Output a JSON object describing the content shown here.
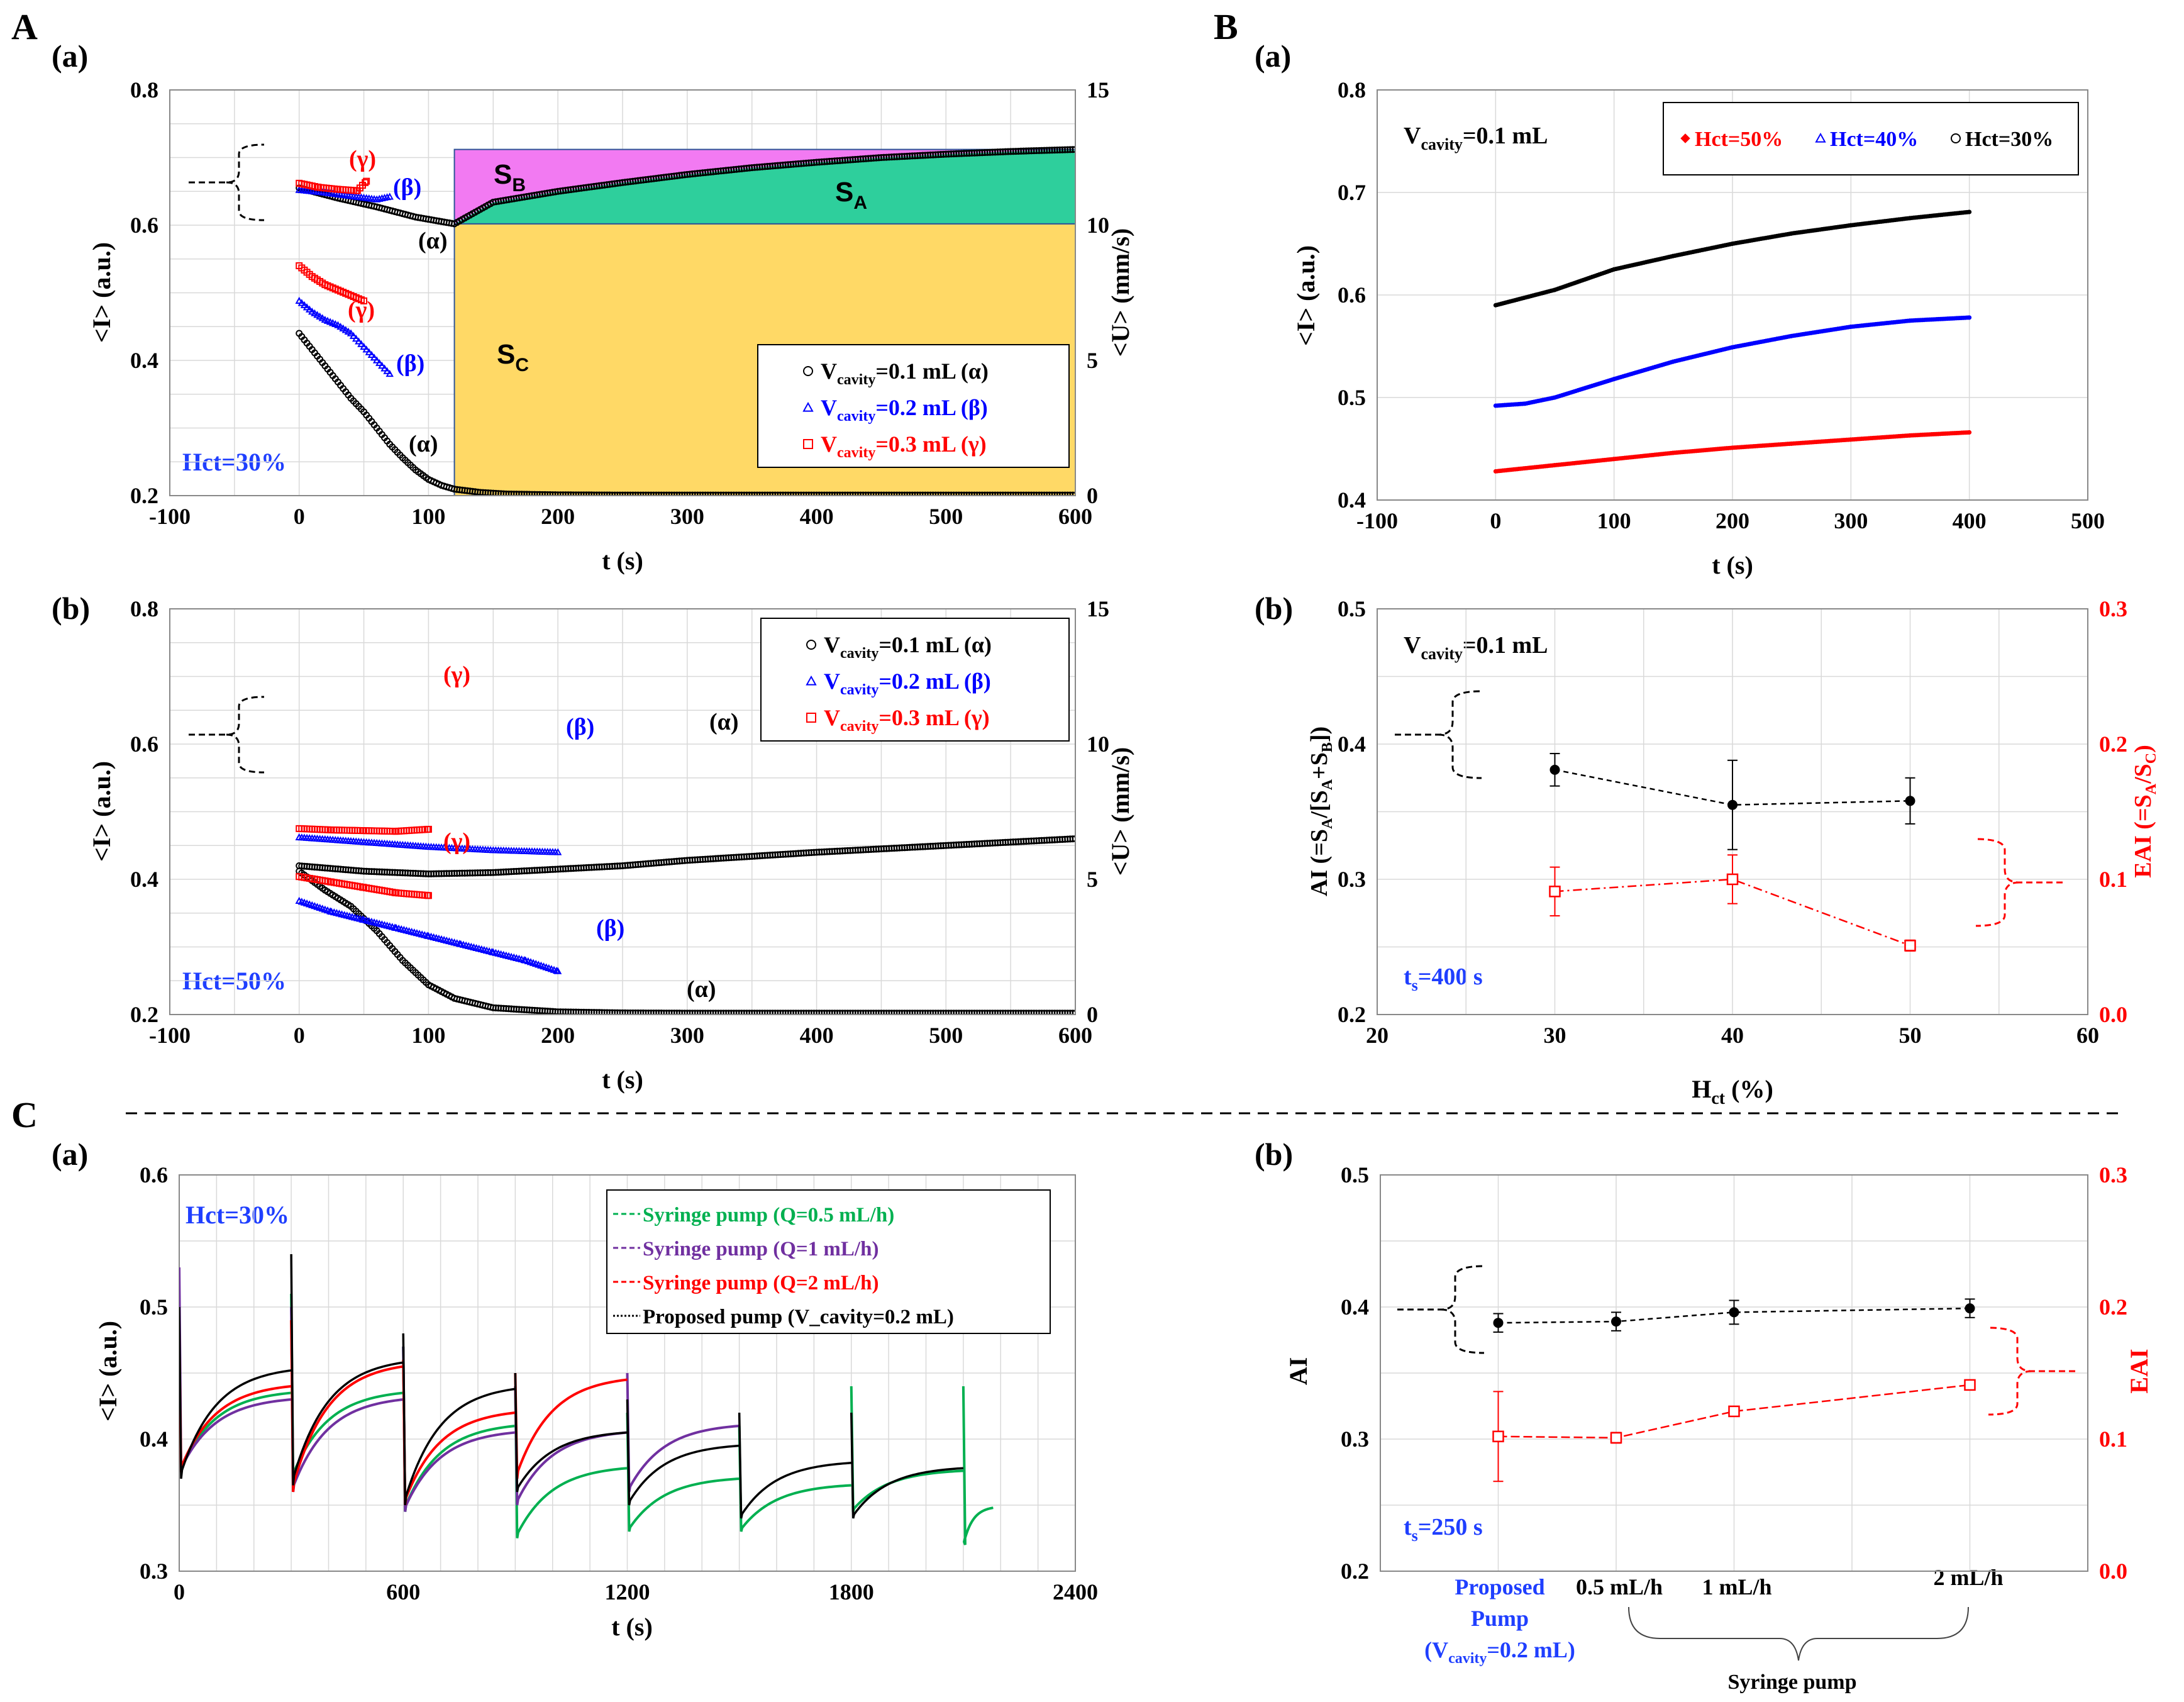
{
  "figure": {
    "section_labels": [
      "A",
      "B",
      "C"
    ],
    "panel_labels": [
      "(a)",
      "(b)",
      "(a)",
      "(b)",
      "(a)",
      "(b)"
    ]
  },
  "colors": {
    "black": "#000000",
    "blue": "#0000ff",
    "red": "#ff0000",
    "green": "#00b050",
    "purple": "#7030a0",
    "magenta_fill": "#f27af2",
    "green_fill": "#2ecf9c",
    "yellow_fill": "#ffd966",
    "grid": "#d9d9d9",
    "hct_blue": "#1f3fff"
  },
  "chart_data": [
    {
      "id": "Aa",
      "type": "scatter",
      "xlabel": "t (s)",
      "ylabel": "<I> (a.u.)",
      "y2label": "<U> (mm/s)",
      "xlim": [
        -100,
        600
      ],
      "xticks": [
        -100,
        0,
        100,
        200,
        300,
        400,
        500,
        600
      ],
      "ylim": [
        0.2,
        0.8
      ],
      "yticks": [
        0.2,
        0.4,
        0.6,
        0.8
      ],
      "y2lim": [
        0,
        15
      ],
      "y2ticks": [
        0,
        5,
        10,
        15
      ],
      "annotation": "Hct=30%",
      "area_labels": [
        "S",
        "B",
        "S",
        "A",
        "S",
        "C"
      ],
      "legend": [
        {
          "main": "V",
          "sub": "cavity",
          "rest": "=0.1 mL (α)",
          "color": "black",
          "marker": "circle"
        },
        {
          "main": "V",
          "sub": "cavity",
          "rest": "=0.2 mL (β)",
          "color": "blue",
          "marker": "triangle"
        },
        {
          "main": "V",
          "sub": "cavity",
          "rest": "=0.3 mL (γ)",
          "color": "red",
          "marker": "square"
        }
      ],
      "series": [
        {
          "name": "I alpha",
          "color": "black",
          "t": [
            0,
            30,
            60,
            90,
            120,
            150,
            200,
            250,
            300,
            350,
            400,
            450,
            500,
            550,
            600
          ],
          "values": [
            0.655,
            0.64,
            0.627,
            0.612,
            0.602,
            0.634,
            0.65,
            0.663,
            0.675,
            0.685,
            0.693,
            0.7,
            0.705,
            0.709,
            0.712
          ]
        },
        {
          "name": "I beta",
          "color": "blue",
          "t": [
            0,
            20,
            40,
            60,
            70
          ],
          "values": [
            0.652,
            0.648,
            0.643,
            0.638,
            0.642
          ]
        },
        {
          "name": "I gamma",
          "color": "red",
          "t": [
            0,
            15,
            30,
            45,
            52
          ],
          "values": [
            0.662,
            0.656,
            0.653,
            0.651,
            0.665
          ]
        },
        {
          "name": "U alpha",
          "color": "black",
          "axis": "y2",
          "t": [
            0,
            10,
            20,
            30,
            40,
            50,
            60,
            70,
            80,
            90,
            100,
            110,
            120,
            140,
            160,
            200,
            250,
            300,
            400,
            500,
            600
          ],
          "values": [
            6.0,
            5.4,
            4.8,
            4.2,
            3.6,
            3.1,
            2.5,
            1.9,
            1.4,
            0.95,
            0.6,
            0.38,
            0.24,
            0.12,
            0.06,
            0.03,
            0.02,
            0.02,
            0.02,
            0.02,
            0.02
          ]
        },
        {
          "name": "U beta",
          "color": "blue",
          "axis": "y2",
          "t": [
            0,
            10,
            20,
            30,
            40,
            50,
            60,
            70
          ],
          "values": [
            7.2,
            6.8,
            6.5,
            6.3,
            6.0,
            5.5,
            5.0,
            4.5
          ]
        },
        {
          "name": "U gamma",
          "color": "red",
          "axis": "y2",
          "t": [
            0,
            10,
            20,
            30,
            40,
            50
          ],
          "values": [
            8.5,
            8.1,
            7.8,
            7.6,
            7.4,
            7.2
          ]
        }
      ],
      "curve_labels": [
        "(γ)",
        "(β)",
        "(α)",
        "(γ)",
        "(β)",
        "(α)"
      ],
      "areas": {
        "S_A_upper": 0.712,
        "split_t": 120,
        "base_I": 0.602
      }
    },
    {
      "id": "Ab",
      "type": "scatter",
      "xlabel": "t (s)",
      "ylabel": "<I> (a.u.)",
      "y2label": "<U> (mm/s)",
      "xlim": [
        -100,
        600
      ],
      "xticks": [
        -100,
        0,
        100,
        200,
        300,
        400,
        500,
        600
      ],
      "ylim": [
        0.2,
        0.8
      ],
      "yticks": [
        0.2,
        0.4,
        0.6,
        0.8
      ],
      "y2lim": [
        0,
        15
      ],
      "y2ticks": [
        0,
        5,
        10,
        15
      ],
      "annotation": "Hct=50%",
      "legend": [
        {
          "main": "V",
          "sub": "cavity",
          "rest": "=0.1 mL (α)",
          "color": "black",
          "marker": "circle"
        },
        {
          "main": "V",
          "sub": "cavity",
          "rest": "=0.2 mL (β)",
          "color": "blue",
          "marker": "triangle"
        },
        {
          "main": "V",
          "sub": "cavity",
          "rest": "=0.3 mL (γ)",
          "color": "red",
          "marker": "square"
        }
      ],
      "series": [
        {
          "name": "I alpha",
          "color": "black",
          "t": [
            0,
            50,
            100,
            150,
            200,
            250,
            300,
            400,
            500,
            600
          ],
          "values": [
            0.42,
            0.412,
            0.408,
            0.41,
            0.415,
            0.42,
            0.428,
            0.44,
            0.45,
            0.46
          ]
        },
        {
          "name": "I beta",
          "color": "blue",
          "t": [
            0,
            50,
            100,
            150,
            200
          ],
          "values": [
            0.462,
            0.455,
            0.448,
            0.443,
            0.44
          ]
        },
        {
          "name": "I gamma",
          "color": "red",
          "t": [
            0,
            25,
            50,
            75,
            100
          ],
          "values": [
            0.475,
            0.473,
            0.472,
            0.471,
            0.474
          ]
        },
        {
          "name": "U alpha",
          "color": "black",
          "axis": "y2",
          "t": [
            0,
            20,
            40,
            60,
            80,
            100,
            120,
            150,
            200,
            250,
            300,
            400,
            500,
            600
          ],
          "values": [
            5.3,
            4.6,
            4.0,
            3.1,
            2.0,
            1.1,
            0.6,
            0.25,
            0.1,
            0.06,
            0.05,
            0.05,
            0.05,
            0.05
          ]
        },
        {
          "name": "U beta",
          "color": "blue",
          "axis": "y2",
          "t": [
            0,
            25,
            50,
            75,
            100,
            125,
            150,
            175,
            200
          ],
          "values": [
            4.2,
            3.8,
            3.5,
            3.2,
            2.9,
            2.6,
            2.3,
            2.0,
            1.6
          ]
        },
        {
          "name": "U gamma",
          "color": "red",
          "axis": "y2",
          "t": [
            0,
            25,
            50,
            75,
            100
          ],
          "values": [
            5.1,
            4.9,
            4.7,
            4.5,
            4.4
          ]
        }
      ],
      "curve_labels": [
        "(γ)",
        "(β)",
        "(α)",
        "(γ)",
        "(β)",
        "(α)"
      ]
    },
    {
      "id": "Ba",
      "type": "scatter",
      "xlabel": "t (s)",
      "ylabel": "<I> (a.u.)",
      "xlim": [
        -100,
        500
      ],
      "xticks": [
        -100,
        0,
        100,
        200,
        300,
        400,
        500
      ],
      "ylim": [
        0.4,
        0.8
      ],
      "yticks": [
        0.4,
        0.5,
        0.6,
        0.7,
        0.8
      ],
      "annotation": "=0.1 mL",
      "legend": [
        {
          "label": "Hct=50%",
          "color": "red",
          "marker": "diamond"
        },
        {
          "label": "Hct=40%",
          "color": "blue",
          "marker": "triangle"
        },
        {
          "label": "Hct=30%",
          "color": "black",
          "marker": "circle"
        }
      ],
      "series": [
        {
          "name": "Hct=30%",
          "color": "black",
          "t": [
            0,
            50,
            100,
            150,
            200,
            250,
            300,
            350,
            400
          ],
          "values": [
            0.59,
            0.605,
            0.625,
            0.638,
            0.65,
            0.66,
            0.668,
            0.675,
            0.681
          ]
        },
        {
          "name": "Hct=40%",
          "color": "blue",
          "t": [
            0,
            25,
            50,
            100,
            150,
            200,
            250,
            300,
            350,
            400
          ],
          "values": [
            0.492,
            0.494,
            0.5,
            0.518,
            0.535,
            0.549,
            0.56,
            0.569,
            0.575,
            0.578
          ]
        },
        {
          "name": "Hct=50%",
          "color": "red",
          "t": [
            0,
            50,
            100,
            150,
            200,
            250,
            300,
            350,
            400
          ],
          "values": [
            0.428,
            0.434,
            0.44,
            0.446,
            0.451,
            0.455,
            0.459,
            0.463,
            0.466
          ]
        }
      ]
    },
    {
      "id": "Bb",
      "type": "scatter",
      "xlabel_main": "H",
      "xlabel_sub": "ct",
      "xlabel_rest": " (%)",
      "ylabel": "AI (=S_A/[S_A+S_B])",
      "y2label": "EAI (=S_A/S_C)",
      "xlim": [
        20,
        60
      ],
      "xticks": [
        20,
        30,
        40,
        50,
        60
      ],
      "ylim": [
        0.2,
        0.5
      ],
      "yticks": [
        0.2,
        0.3,
        0.4,
        0.5
      ],
      "y2lim": [
        0.0,
        0.3
      ],
      "y2ticks": [
        0.0,
        0.1,
        0.2,
        0.3
      ],
      "annotation": "=0.1 mL",
      "ts_label": "=400 s",
      "series": [
        {
          "name": "AI",
          "color": "black",
          "x": [
            30,
            40,
            50
          ],
          "values": [
            0.381,
            0.355,
            0.358
          ],
          "err": [
            0.012,
            0.033,
            0.017
          ]
        },
        {
          "name": "EAI",
          "color": "red",
          "axis": "y2",
          "x": [
            30,
            40,
            50
          ],
          "values": [
            0.091,
            0.1,
            0.051
          ],
          "err": [
            0.018,
            0.018,
            0.004
          ]
        }
      ]
    },
    {
      "id": "Ca",
      "type": "line",
      "xlabel": "t (s)",
      "ylabel": "<I> (a.u.)",
      "xlim": [
        0,
        2400
      ],
      "xticks": [
        0,
        600,
        1200,
        1800,
        2400
      ],
      "ylim": [
        0.3,
        0.6
      ],
      "yticks": [
        0.3,
        0.4,
        0.5,
        0.6
      ],
      "annotation": "Hct=30%",
      "legend": [
        {
          "label": "Syringe pump (Q=0.5 mL/h)",
          "color": "green",
          "dash": "dash"
        },
        {
          "label": "Syringe pump (Q=1 mL/h)",
          "color": "purple",
          "dash": "dash"
        },
        {
          "label": "Syringe pump (Q=2 mL/h)",
          "color": "red",
          "dash": "dash"
        },
        {
          "label": "Proposed pump (V_cavity=0.2 mL)",
          "color": "black",
          "dash": "dot"
        }
      ],
      "series": [
        {
          "name": "Syringe pump (Q=0.5 mL/h)",
          "color": "green",
          "cycles": [
            [
              0,
              300,
              0.375,
              0.435,
              0.48
            ],
            [
              300,
              600,
              0.37,
              0.435,
              0.51
            ],
            [
              600,
              900,
              0.345,
              0.41,
              0.47
            ],
            [
              900,
              1200,
              0.325,
              0.378,
              0.44
            ],
            [
              1200,
              1500,
              0.33,
              0.37,
              0.42
            ],
            [
              1500,
              1800,
              0.33,
              0.365,
              0.41
            ],
            [
              1800,
              2100,
              0.345,
              0.376,
              0.44
            ],
            [
              2100,
              2180,
              0.32,
              0.348,
              0.44
            ]
          ]
        },
        {
          "name": "Syringe pump (Q=1 mL/h)",
          "color": "purple",
          "cycles": [
            [
              0,
              300,
              0.375,
              0.43,
              0.53
            ],
            [
              300,
              600,
              0.36,
              0.43,
              0.5
            ],
            [
              600,
              900,
              0.345,
              0.405,
              0.47
            ],
            [
              900,
              1200,
              0.35,
              0.405,
              0.44
            ],
            [
              1200,
              1500,
              0.36,
              0.41,
              0.45
            ]
          ]
        },
        {
          "name": "Syringe pump (Q=2 mL/h)",
          "color": "red",
          "cycles": [
            [
              0,
              300,
              0.375,
              0.44,
              0.48
            ],
            [
              300,
              600,
              0.36,
              0.455,
              0.49
            ],
            [
              600,
              900,
              0.35,
              0.42,
              0.46
            ],
            [
              900,
              1200,
              0.37,
              0.445,
              0.45
            ]
          ]
        },
        {
          "name": "Proposed pump (V_cavity=0.2 mL)",
          "color": "black",
          "cycles": [
            [
              0,
              300,
              0.37,
              0.452,
              0.5
            ],
            [
              300,
              600,
              0.365,
              0.458,
              0.54
            ],
            [
              600,
              900,
              0.35,
              0.438,
              0.48
            ],
            [
              900,
              1200,
              0.36,
              0.405,
              0.45
            ],
            [
              1200,
              1500,
              0.35,
              0.395,
              0.43
            ],
            [
              1500,
              1800,
              0.34,
              0.382,
              0.42
            ],
            [
              1800,
              2100,
              0.34,
              0.378,
              0.42
            ]
          ]
        }
      ]
    },
    {
      "id": "Cb",
      "type": "scatter",
      "ylabel": "AI",
      "y2label": "EAI",
      "ylim": [
        0.2,
        0.5
      ],
      "yticks": [
        0.2,
        0.3,
        0.4,
        0.5
      ],
      "y2lim": [
        0.0,
        0.3
      ],
      "y2ticks": [
        0.0,
        0.1,
        0.2,
        0.3
      ],
      "categories": [
        "Proposed Pump",
        "0.5 mL/h",
        "1 mL/h",
        "2 mL/h"
      ],
      "proposed_lines": [
        "Proposed",
        "Pump",
        "(V",
        "cavity",
        "=0.2 mL)"
      ],
      "group_label": "Syringe pump",
      "ts_label": "=250 s",
      "series": [
        {
          "name": "AI",
          "color": "black",
          "x": [
            0,
            1,
            2,
            4
          ],
          "values": [
            0.388,
            0.389,
            0.396,
            0.399
          ],
          "err": [
            0.007,
            0.007,
            0.009,
            0.007
          ]
        },
        {
          "name": "EAI",
          "color": "red",
          "axis": "y2",
          "x": [
            0,
            1,
            2,
            4
          ],
          "values": [
            0.102,
            0.101,
            0.121,
            0.141
          ],
          "err": [
            0.034,
            0.004,
            0.003,
            0.003
          ]
        }
      ]
    }
  ]
}
